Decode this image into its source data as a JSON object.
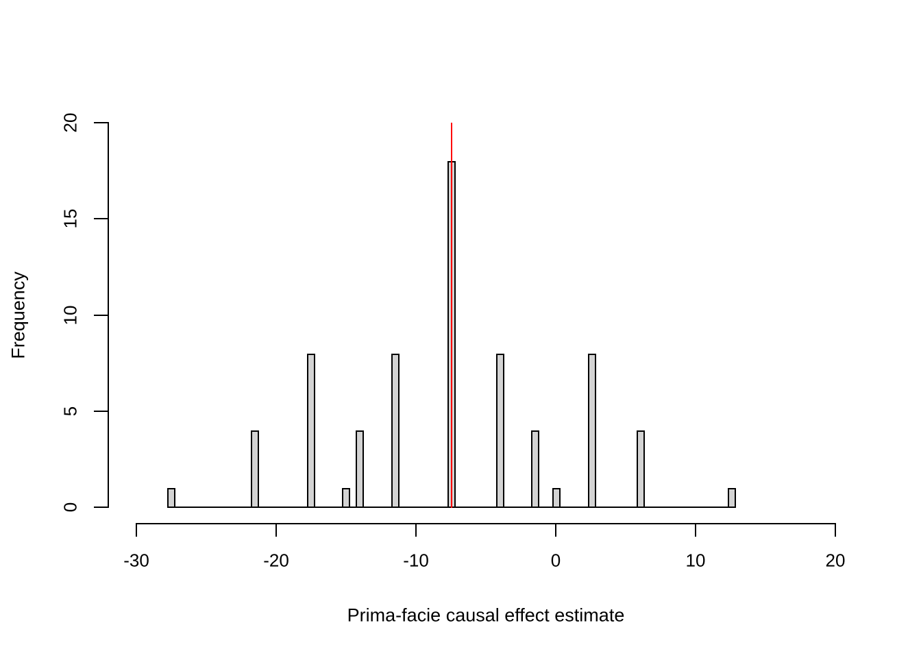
{
  "figure": {
    "title": ""
  },
  "chart_data": {
    "type": "bar",
    "subtype": "histogram",
    "title": "",
    "xlabel": "Prima-facie causal effect estimate",
    "ylabel": "Frequency",
    "xlim": [
      -30,
      20
    ],
    "ylim": [
      0,
      20
    ],
    "x_ticks": [
      -30,
      -20,
      -10,
      0,
      10,
      20
    ],
    "y_ticks": [
      0,
      5,
      10,
      15,
      20
    ],
    "grid": false,
    "legend": "none",
    "bins": [
      {
        "x": -27.5,
        "count": 1
      },
      {
        "x": -21.5,
        "count": 4
      },
      {
        "x": -17.5,
        "count": 8
      },
      {
        "x": -15.0,
        "count": 1
      },
      {
        "x": -14.0,
        "count": 4
      },
      {
        "x": -11.45,
        "count": 8
      },
      {
        "x": -7.45,
        "count": 18
      },
      {
        "x": -3.95,
        "count": 8
      },
      {
        "x": -1.45,
        "count": 4
      },
      {
        "x": 0.05,
        "count": 1
      },
      {
        "x": 2.6,
        "count": 8
      },
      {
        "x": 6.1,
        "count": 4
      },
      {
        "x": 12.6,
        "count": 1
      }
    ],
    "total_count": 70,
    "reference_line": {
      "x": -7.45,
      "y_top": 20,
      "color": "#FF0000"
    },
    "colors": {
      "bar_fill": "#D3D3D3",
      "bar_border": "#000000",
      "axis": "#000000",
      "background": "#ffffff"
    }
  }
}
